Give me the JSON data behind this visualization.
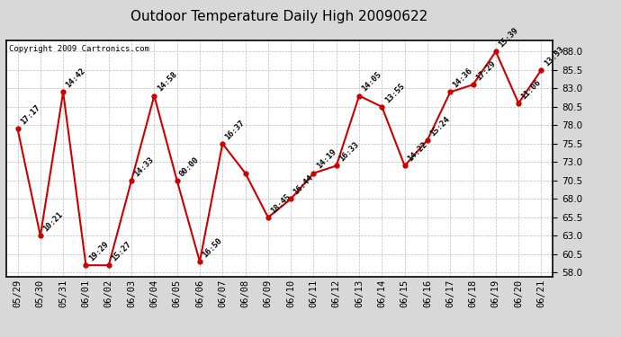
{
  "title": "Outdoor Temperature Daily High 20090622",
  "copyright": "Copyright 2009 Cartronics.com",
  "dates": [
    "05/29",
    "05/30",
    "05/31",
    "06/01",
    "06/02",
    "06/03",
    "06/04",
    "06/05",
    "06/06",
    "06/07",
    "06/08",
    "06/09",
    "06/10",
    "06/11",
    "06/12",
    "06/13",
    "06/14",
    "06/15",
    "06/16",
    "06/17",
    "06/18",
    "06/19",
    "06/20",
    "06/21"
  ],
  "values": [
    77.5,
    63.0,
    82.5,
    59.0,
    59.0,
    70.5,
    82.0,
    70.5,
    59.5,
    75.5,
    71.5,
    65.5,
    68.0,
    71.5,
    72.5,
    82.0,
    80.5,
    72.5,
    76.0,
    82.5,
    83.5,
    88.0,
    81.0,
    85.5
  ],
  "labels": [
    "17:17",
    "10:21",
    "14:42",
    "19:29",
    "15:27",
    "14:33",
    "14:58",
    "00:00",
    "16:50",
    "16:37",
    "",
    "18:45",
    "16:44",
    "14:19",
    "16:33",
    "14:05",
    "13:55",
    "14:22",
    "15:24",
    "14:36",
    "17:29",
    "15:39",
    "11:06",
    "13:53"
  ],
  "ylim": [
    57.5,
    89.5
  ],
  "yticks": [
    58.0,
    60.5,
    63.0,
    65.5,
    68.0,
    70.5,
    73.0,
    75.5,
    78.0,
    80.5,
    83.0,
    85.5,
    88.0
  ],
  "line_color": "#cc0000",
  "marker_color": "#cc0000",
  "bg_color": "#d8d8d8",
  "plot_bg_color": "#ffffff",
  "grid_color": "#bbbbbb",
  "title_fontsize": 11,
  "label_fontsize": 6.5,
  "tick_fontsize": 7.5,
  "copyright_fontsize": 6.5
}
